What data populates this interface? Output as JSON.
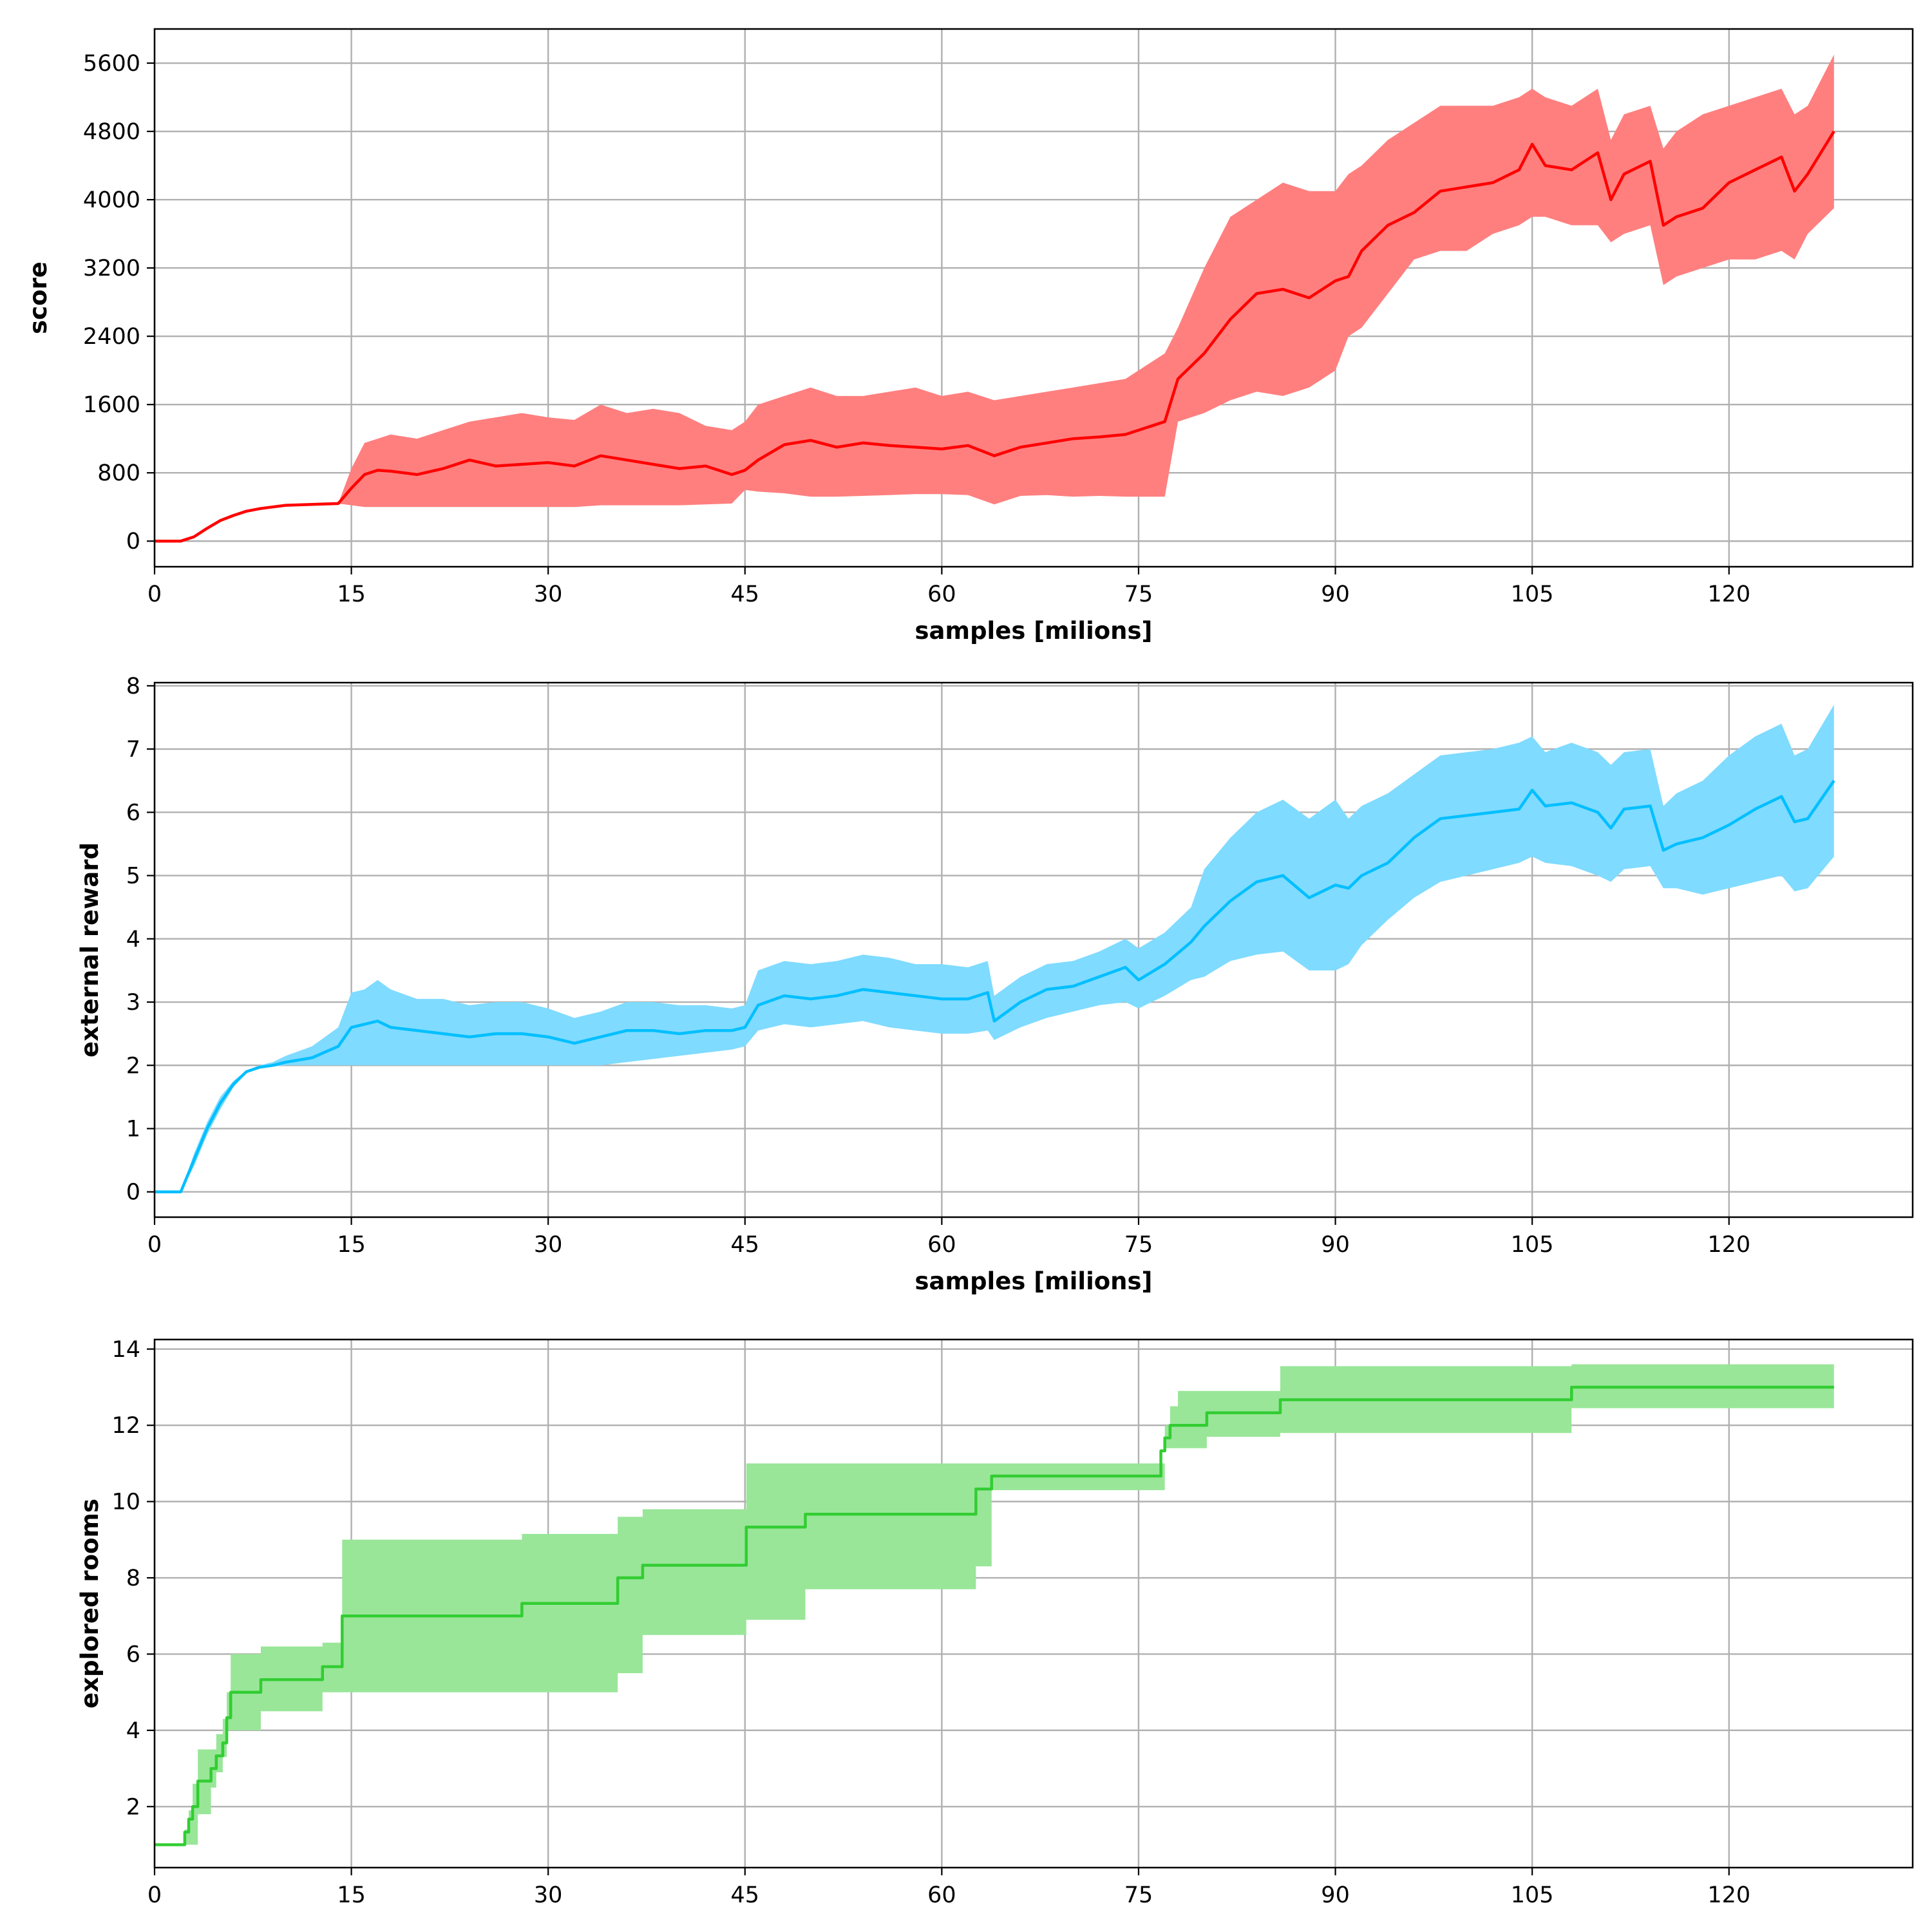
{
  "chart_data": [
    {
      "type": "line",
      "title": "",
      "xlabel": "samples [milions]",
      "ylabel": "score",
      "xlim": [
        0,
        134
      ],
      "ylim": [
        -300,
        6000
      ],
      "xticks": [
        0,
        15,
        30,
        45,
        60,
        75,
        90,
        105,
        120
      ],
      "yticks": [
        0,
        800,
        1600,
        2400,
        3200,
        4000,
        4800,
        5600
      ],
      "grid": true,
      "line_color": "#ff0000",
      "band_color": "#ff7f7f",
      "series": [
        {
          "x": [
            0,
            2,
            3,
            4,
            5,
            6,
            7,
            8,
            9,
            10,
            12,
            14,
            15,
            16,
            17,
            18,
            20,
            22,
            24,
            26,
            28,
            30,
            32,
            34,
            36,
            38,
            40,
            42,
            44,
            45,
            46,
            48,
            50,
            52,
            54,
            56,
            58,
            60,
            62,
            64,
            66,
            68,
            70,
            72,
            74,
            76,
            77,
            78,
            80,
            82,
            84,
            86,
            88,
            90,
            91,
            92,
            94,
            96,
            98,
            100,
            102,
            104,
            105,
            106,
            108,
            110,
            111,
            112,
            114,
            115,
            116,
            118,
            120,
            122,
            124,
            125,
            126,
            128
          ],
          "y": [
            0,
            0,
            50,
            150,
            240,
            300,
            350,
            380,
            400,
            420,
            430,
            440,
            620,
            780,
            830,
            820,
            780,
            850,
            950,
            880,
            900,
            920,
            880,
            1000,
            950,
            900,
            850,
            880,
            780,
            830,
            950,
            1130,
            1180,
            1100,
            1150,
            1120,
            1100,
            1080,
            1120,
            1000,
            1100,
            1150,
            1200,
            1220,
            1250,
            1350,
            1400,
            1900,
            2200,
            2600,
            2900,
            2950,
            2850,
            3050,
            3100,
            3400,
            3700,
            3850,
            4100,
            4150,
            4200,
            4350,
            4650,
            4400,
            4350,
            4550,
            4000,
            4300,
            4450,
            3700,
            3800,
            3900,
            4200,
            4350,
            4500,
            4100,
            4300,
            4800
          ],
          "lower": [
            0,
            0,
            50,
            150,
            240,
            300,
            350,
            380,
            400,
            420,
            430,
            440,
            420,
            400,
            400,
            400,
            400,
            400,
            400,
            400,
            400,
            400,
            400,
            420,
            420,
            420,
            420,
            430,
            440,
            600,
            580,
            560,
            520,
            520,
            530,
            540,
            550,
            550,
            540,
            430,
            530,
            540,
            520,
            530,
            520,
            520,
            520,
            1400,
            1500,
            1650,
            1750,
            1700,
            1800,
            2000,
            2400,
            2500,
            2900,
            3300,
            3400,
            3400,
            3600,
            3700,
            3800,
            3800,
            3700,
            3700,
            3500,
            3600,
            3700,
            3000,
            3100,
            3200,
            3300,
            3300,
            3400,
            3300,
            3600,
            3900
          ],
          "upper": [
            0,
            0,
            50,
            150,
            240,
            300,
            350,
            380,
            400,
            420,
            430,
            440,
            850,
            1150,
            1200,
            1250,
            1200,
            1300,
            1400,
            1450,
            1500,
            1450,
            1420,
            1600,
            1500,
            1550,
            1500,
            1350,
            1300,
            1400,
            1600,
            1700,
            1800,
            1700,
            1700,
            1750,
            1800,
            1700,
            1750,
            1650,
            1700,
            1750,
            1800,
            1850,
            1900,
            2100,
            2200,
            2500,
            3200,
            3800,
            4000,
            4200,
            4100,
            4100,
            4300,
            4400,
            4700,
            4900,
            5100,
            5100,
            5100,
            5200,
            5300,
            5200,
            5100,
            5300,
            4700,
            5000,
            5100,
            4600,
            4800,
            5000,
            5100,
            5200,
            5300,
            5000,
            5100,
            5700
          ]
        }
      ]
    },
    {
      "type": "line",
      "title": "",
      "xlabel": "samples [milions]",
      "ylabel": "external reward",
      "xlim": [
        0,
        134
      ],
      "ylim": [
        -0.4,
        8.05
      ],
      "xticks": [
        0,
        15,
        30,
        45,
        60,
        75,
        90,
        105,
        120
      ],
      "yticks": [
        0,
        1,
        2,
        3,
        4,
        5,
        6,
        7,
        8
      ],
      "grid": true,
      "line_color": "#00bfff",
      "band_color": "#7fdbff",
      "series": [
        {
          "x": [
            0,
            2,
            3,
            4,
            5,
            6,
            7,
            8,
            9,
            10,
            12,
            14,
            15,
            16,
            17,
            18,
            20,
            22,
            24,
            26,
            28,
            30,
            32,
            34,
            36,
            38,
            40,
            42,
            44,
            45,
            46,
            48,
            50,
            52,
            54,
            56,
            58,
            60,
            62,
            63.5,
            64,
            66,
            68,
            70,
            72,
            74,
            75,
            77,
            79,
            80,
            82,
            84,
            86,
            88,
            90,
            91,
            92,
            94,
            96,
            98,
            100,
            102,
            104,
            105,
            106,
            108,
            110,
            111,
            112,
            114,
            115,
            116,
            118,
            120,
            122,
            124,
            125,
            126,
            128
          ],
          "y": [
            0,
            0,
            0.5,
            1.0,
            1.4,
            1.7,
            1.9,
            1.97,
            2.0,
            2.05,
            2.12,
            2.3,
            2.6,
            2.65,
            2.7,
            2.6,
            2.55,
            2.5,
            2.45,
            2.5,
            2.5,
            2.45,
            2.35,
            2.45,
            2.55,
            2.55,
            2.5,
            2.55,
            2.55,
            2.6,
            2.95,
            3.1,
            3.05,
            3.1,
            3.2,
            3.15,
            3.1,
            3.05,
            3.05,
            3.15,
            2.7,
            3.0,
            3.2,
            3.25,
            3.4,
            3.55,
            3.35,
            3.6,
            3.95,
            4.2,
            4.6,
            4.9,
            5.0,
            4.65,
            4.85,
            4.8,
            5.0,
            5.2,
            5.6,
            5.9,
            5.95,
            6.0,
            6.05,
            6.35,
            6.1,
            6.15,
            6.0,
            5.75,
            6.05,
            6.1,
            5.4,
            5.5,
            5.6,
            5.8,
            6.05,
            6.25,
            5.85,
            5.9,
            6.5
          ],
          "lower": [
            0,
            0,
            0.4,
            0.9,
            1.3,
            1.65,
            1.88,
            1.95,
            1.98,
            2.0,
            2.0,
            2.0,
            2.0,
            2.0,
            2.0,
            2.0,
            2.0,
            2.0,
            2.0,
            2.0,
            2.0,
            2.0,
            2.0,
            2.0,
            2.05,
            2.1,
            2.15,
            2.2,
            2.25,
            2.3,
            2.55,
            2.65,
            2.6,
            2.65,
            2.7,
            2.6,
            2.55,
            2.5,
            2.5,
            2.55,
            2.4,
            2.6,
            2.75,
            2.85,
            2.95,
            3.0,
            2.9,
            3.1,
            3.35,
            3.4,
            3.65,
            3.75,
            3.8,
            3.5,
            3.5,
            3.6,
            3.9,
            4.3,
            4.65,
            4.9,
            5.0,
            5.1,
            5.2,
            5.3,
            5.2,
            5.15,
            5.0,
            4.9,
            5.1,
            5.15,
            4.8,
            4.8,
            4.7,
            4.8,
            4.9,
            5.0,
            4.75,
            4.8,
            5.3
          ],
          "upper": [
            0,
            0,
            0.6,
            1.1,
            1.5,
            1.75,
            1.92,
            2.0,
            2.05,
            2.15,
            2.3,
            2.6,
            3.15,
            3.2,
            3.35,
            3.2,
            3.05,
            3.05,
            2.95,
            3.0,
            3.0,
            2.9,
            2.75,
            2.85,
            3.0,
            3.0,
            2.95,
            2.95,
            2.9,
            2.95,
            3.5,
            3.65,
            3.6,
            3.65,
            3.75,
            3.7,
            3.6,
            3.6,
            3.55,
            3.65,
            3.1,
            3.4,
            3.6,
            3.65,
            3.8,
            4.0,
            3.85,
            4.1,
            4.5,
            5.1,
            5.6,
            6.0,
            6.2,
            5.9,
            6.2,
            5.9,
            6.1,
            6.3,
            6.6,
            6.9,
            6.95,
            7.0,
            7.1,
            7.2,
            6.95,
            7.1,
            6.95,
            6.75,
            6.95,
            7.0,
            6.1,
            6.3,
            6.5,
            6.9,
            7.2,
            7.4,
            6.9,
            7.0,
            7.7
          ]
        }
      ]
    },
    {
      "type": "line",
      "title": "",
      "xlabel": "",
      "ylabel": "explored rooms",
      "xlim": [
        0,
        134
      ],
      "ylim": [
        0.4,
        14.25
      ],
      "xticks": [
        0,
        15,
        30,
        45,
        60,
        75,
        90,
        105,
        120
      ],
      "yticks": [
        2,
        4,
        6,
        8,
        10,
        12,
        14
      ],
      "grid": true,
      "step": true,
      "line_color": "#32cd32",
      "band_color": "#99e699",
      "series": [
        {
          "x": [
            0,
            2.3,
            2.6,
            2.9,
            3.3,
            4.3,
            4.7,
            5.2,
            5.5,
            5.8,
            6.1,
            8.1,
            12.8,
            14.3,
            28,
            35.3,
            37.2,
            45.1,
            49.6,
            62.6,
            63.8,
            76.7,
            77,
            77.4,
            78,
            80.2,
            85.8,
            108,
            128
          ],
          "y": [
            1,
            1.33,
            1.67,
            2,
            2.67,
            3,
            3.33,
            3.67,
            4.33,
            5,
            5,
            5.33,
            5.67,
            7,
            7.33,
            8,
            8.33,
            9.33,
            9.67,
            10.33,
            10.67,
            11.33,
            11.67,
            12,
            12,
            12.33,
            12.67,
            13,
            13
          ],
          "lower": [
            1,
            1,
            1,
            1,
            1.8,
            2.5,
            2.9,
            3.3,
            4,
            4,
            4,
            4.5,
            5,
            5,
            5,
            5.5,
            6.5,
            6.9,
            7.7,
            8.3,
            10.3,
            10.3,
            11.4,
            11.4,
            11.4,
            11.7,
            11.8,
            12.45,
            12.45
          ],
          "upper": [
            1,
            1.4,
            1.9,
            2.6,
            3.5,
            3.5,
            3.9,
            4.3,
            5.0,
            6.0,
            6.0,
            6.2,
            6.3,
            9.0,
            9.15,
            9.6,
            9.8,
            11.0,
            11.0,
            11.0,
            11.0,
            11.0,
            12.0,
            12.5,
            12.9,
            12.9,
            13.55,
            13.6,
            13.6
          ]
        }
      ]
    }
  ]
}
